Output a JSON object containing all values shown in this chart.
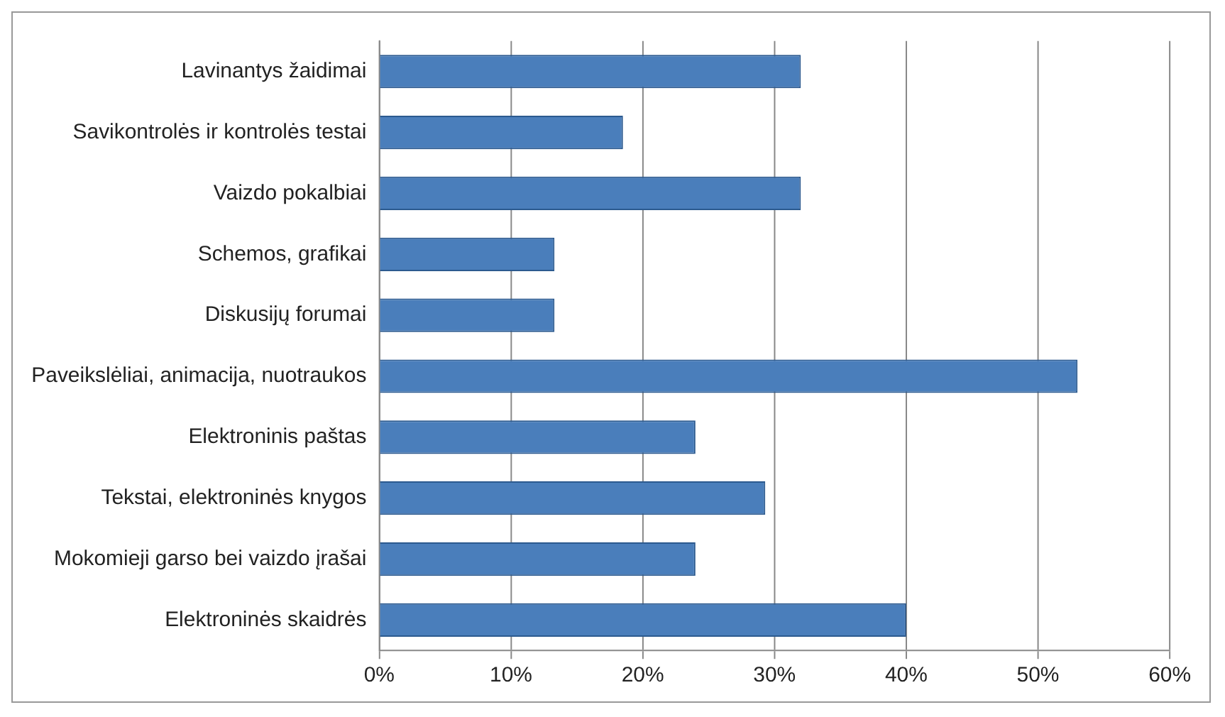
{
  "chart_data": {
    "type": "bar",
    "orientation": "horizontal",
    "categories": [
      "Lavinantys žaidimai",
      "Savikontrolės ir kontrolės testai",
      "Vaizdo pokalbiai",
      "Schemos, grafikai",
      "Diskusijų forumai",
      "Paveikslėliai, animacija, nuotraukos",
      "Elektroninis paštas",
      "Tekstai, elektroninės knygos",
      "Mokomieji garso bei vaizdo įrašai",
      "Elektroninės skaidrės"
    ],
    "values": [
      32,
      18.5,
      32,
      13.3,
      13.3,
      53,
      24,
      29.3,
      24,
      40
    ],
    "color": "#4a7ebb",
    "xlim": [
      0,
      60
    ],
    "xticks": [
      {
        "value": 0,
        "label": "0%"
      },
      {
        "value": 10,
        "label": "10%"
      },
      {
        "value": 20,
        "label": "20%"
      },
      {
        "value": 30,
        "label": "30%"
      },
      {
        "value": 40,
        "label": "40%"
      },
      {
        "value": 50,
        "label": "50%"
      },
      {
        "value": 60,
        "label": "60%"
      }
    ],
    "grid": "x",
    "legend": false
  }
}
